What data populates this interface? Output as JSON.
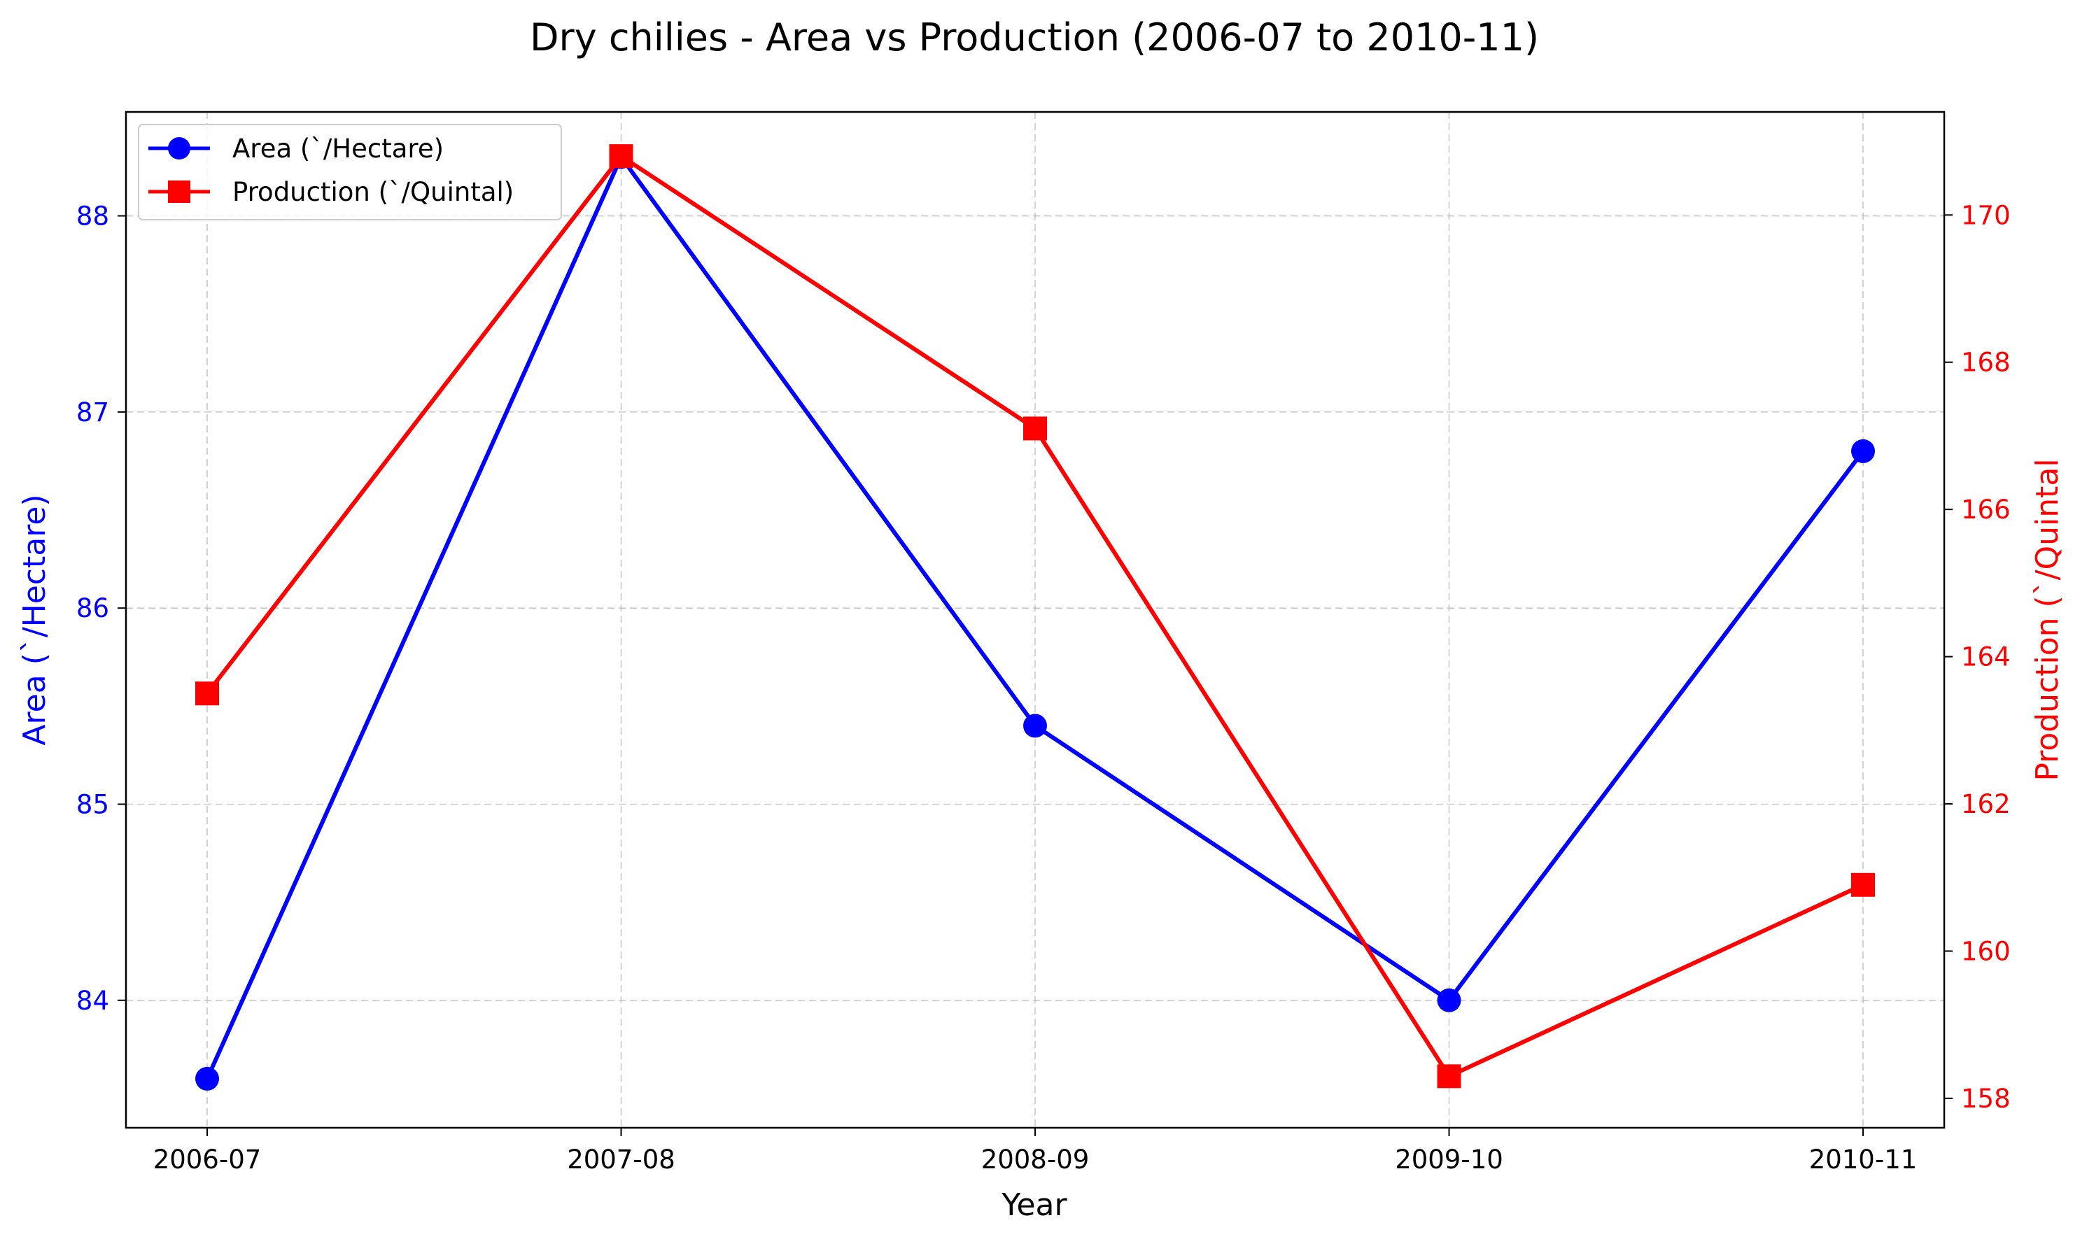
{
  "chart_data": {
    "type": "line",
    "title": "Dry chilies  - Area vs Production (2006-07 to 2010-11)",
    "xlabel": "Year",
    "categories": [
      "2006-07",
      "2007-08",
      "2008-09",
      "2009-10",
      "2010-11"
    ],
    "y_left": {
      "label": "Area (`/Hectare)",
      "ylim": [
        83.35,
        88.53
      ],
      "ticks": [
        84,
        85,
        86,
        87,
        88
      ],
      "color": "#0000ff"
    },
    "y_right": {
      "label": "Production (`/Quintal",
      "ylim": [
        157.6,
        171.4
      ],
      "ticks": [
        158,
        160,
        162,
        164,
        166,
        168,
        170
      ],
      "color": "#ff0000"
    },
    "series": [
      {
        "name": "Area (`/Hectare)",
        "axis": "left",
        "color": "#0000ff",
        "marker": "circle",
        "values": [
          83.6,
          88.3,
          85.4,
          84.0,
          86.8
        ]
      },
      {
        "name": "Production (`/Quintal)",
        "axis": "right",
        "color": "#ff0000",
        "marker": "square",
        "values": [
          163.5,
          170.8,
          167.1,
          158.3,
          160.9
        ]
      }
    ],
    "grid": true,
    "legend_position": "top-left"
  }
}
